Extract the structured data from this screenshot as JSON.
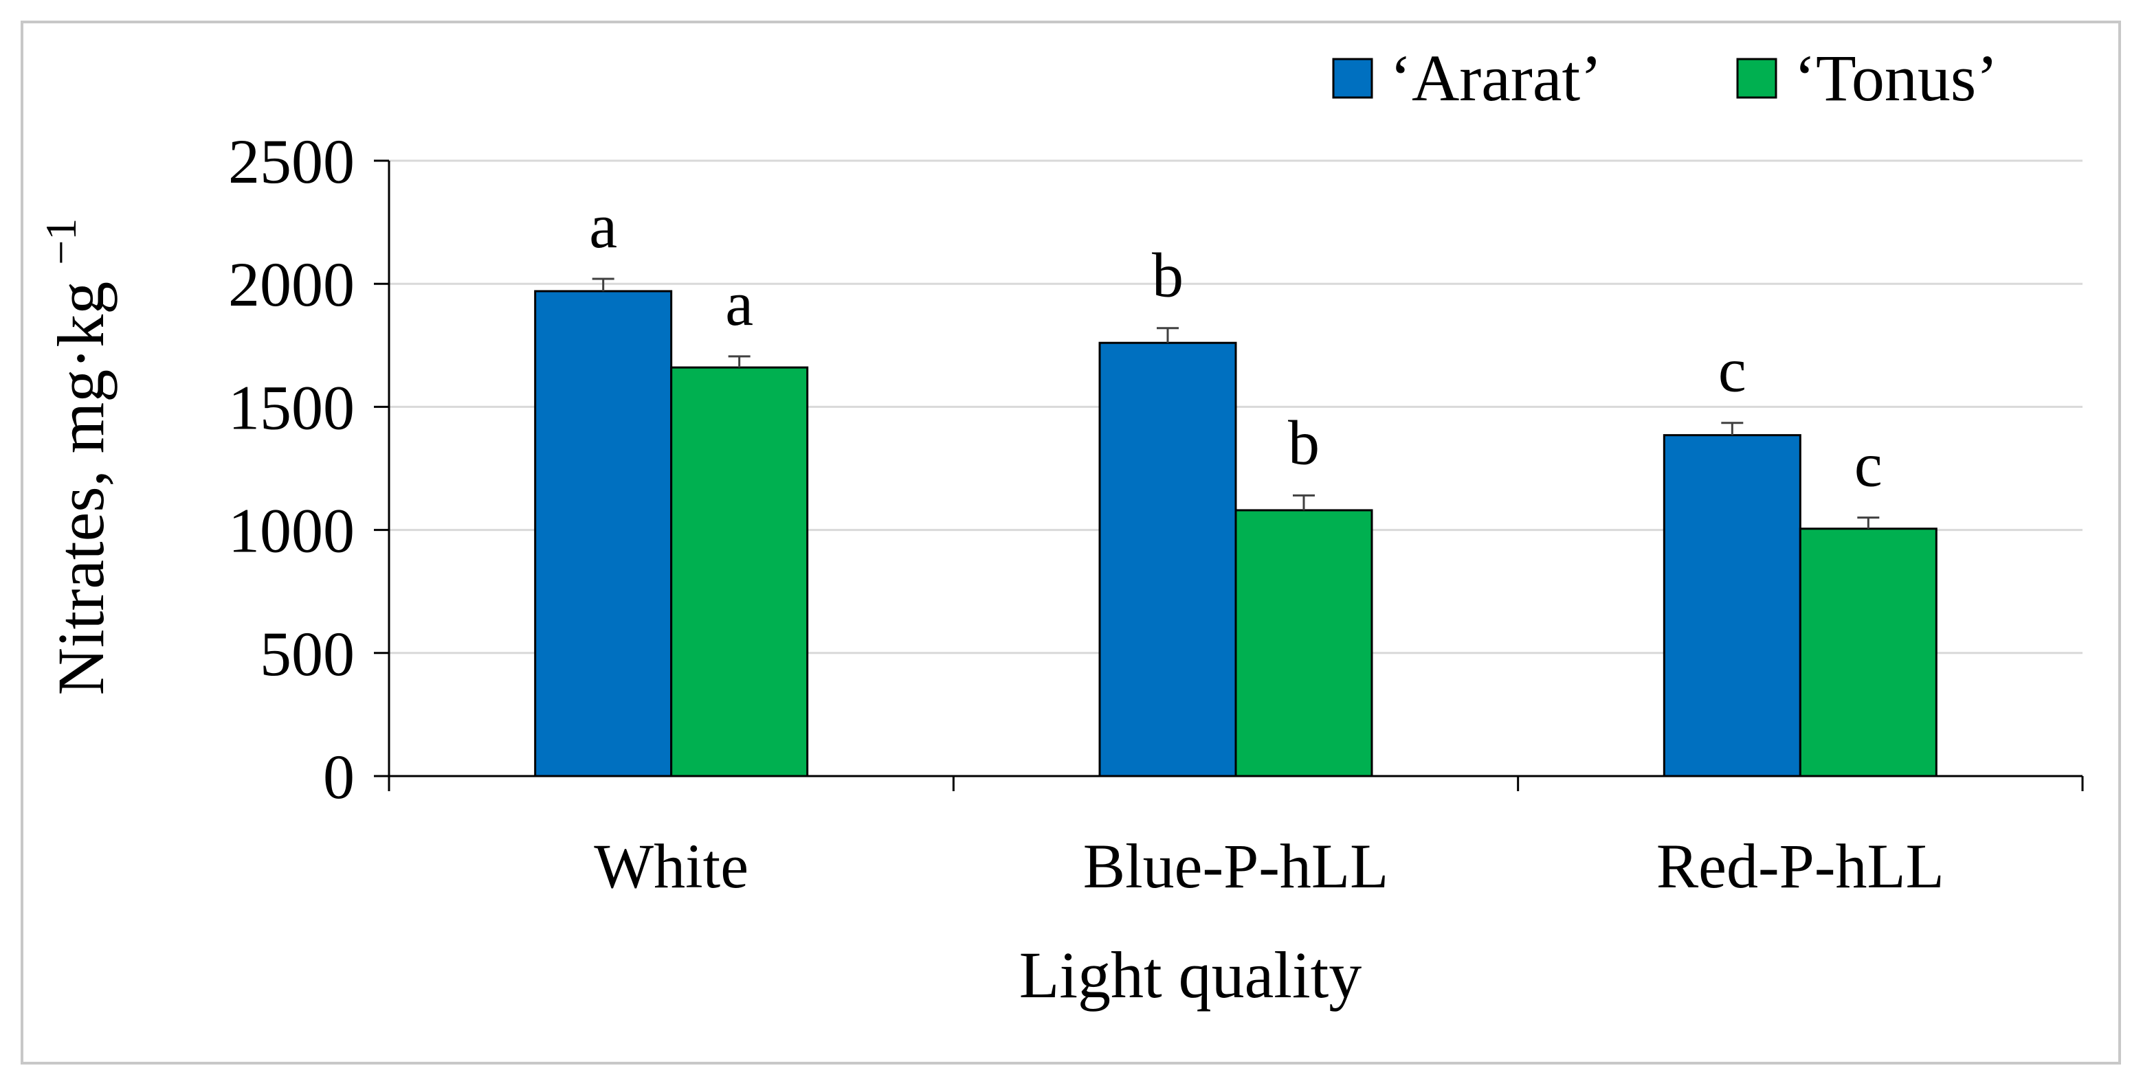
{
  "chart_data": {
    "type": "bar",
    "title": "",
    "xlabel": "Light quality",
    "ylabel": "Nitrates, mg·kg",
    "ylabel_superscript": "−1",
    "categories": [
      "White",
      "Blue-P-hLL",
      "Red-P-hLL"
    ],
    "ylim": [
      0,
      2500
    ],
    "yticks": [
      0,
      500,
      1000,
      1500,
      2000,
      2500
    ],
    "grid": true,
    "legend_position": "top-right",
    "series": [
      {
        "name": "‘Ararat’",
        "color": "#0070c0",
        "values": [
          1970,
          1760,
          1385
        ],
        "errors": [
          50,
          60,
          50
        ],
        "significance": [
          "a",
          "b",
          "c"
        ]
      },
      {
        "name": "‘Tonus’",
        "color": "#00b050",
        "values": [
          1660,
          1080,
          1005
        ],
        "errors": [
          45,
          60,
          45
        ],
        "significance": [
          "a",
          "b",
          "c"
        ]
      }
    ]
  }
}
